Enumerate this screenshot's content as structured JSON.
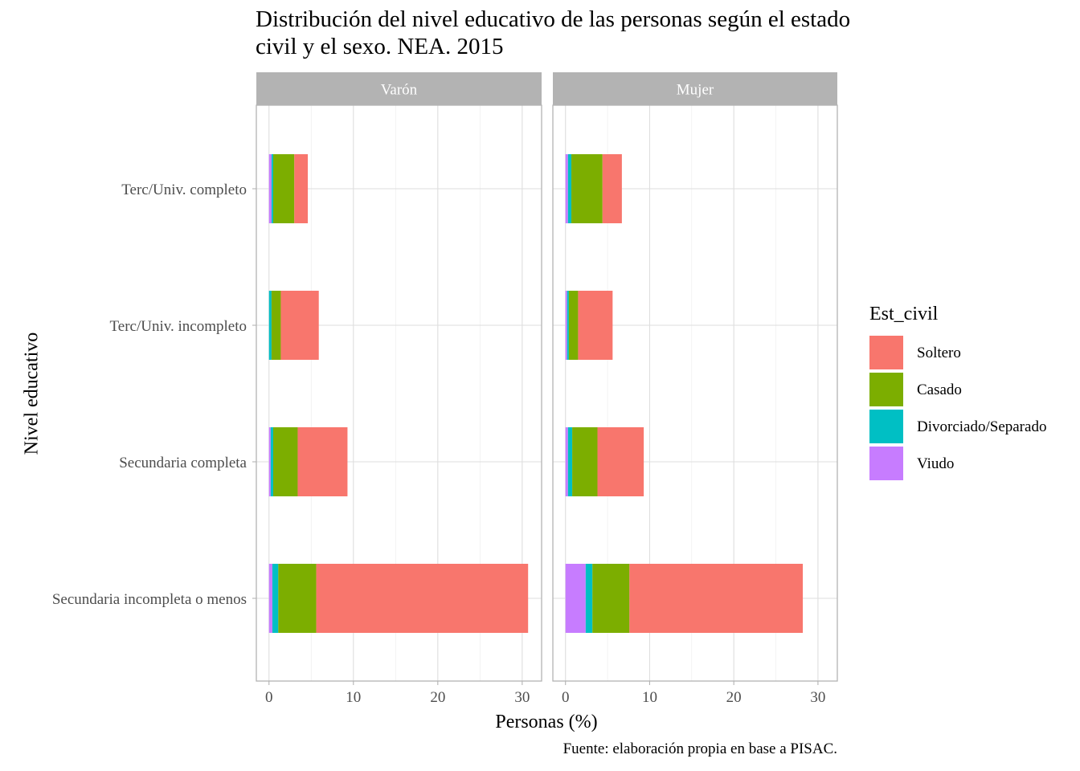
{
  "chart_data": {
    "type": "bar",
    "orientation": "horizontal",
    "stacked": true,
    "title": "Distribución del nivel educativo de las personas según el estado civil y el sexo. NEA. 2015",
    "title_lines": [
      "Distribución del nivel educativo de las personas según el estado",
      "civil y el sexo. NEA. 2015"
    ],
    "xlabel": "Personas (%)",
    "ylabel": "Nivel educativo",
    "caption": "Fuente: elaboración propia en base a PISAC.",
    "xlim": [
      -1.5,
      32.3
    ],
    "x_ticks": [
      "0",
      "10",
      "20",
      "30"
    ],
    "grid": true,
    "legend": {
      "title": "Est_civil",
      "position": "right",
      "items": [
        {
          "label": "Soltero",
          "color": "#F8766D"
        },
        {
          "label": "Casado",
          "color": "#7CAE00"
        },
        {
          "label": "Divorciado/Separado",
          "color": "#00BFC4"
        },
        {
          "label": "Viudo",
          "color": "#C77CFF"
        }
      ]
    },
    "categories": [
      "Terc/Univ. completo",
      "Terc/Univ. incompleto",
      "Secundaria completa",
      "Secundaria incompleta o menos"
    ],
    "stack_order": [
      "Viudo",
      "Divorciado/Separado",
      "Casado",
      "Soltero"
    ],
    "facets": [
      {
        "label": "Varón",
        "series": [
          {
            "name": "Viudo",
            "values": [
              0.3,
              0.0,
              0.2,
              0.4
            ]
          },
          {
            "name": "Divorciado/Separado",
            "values": [
              0.2,
              0.3,
              0.3,
              0.7
            ]
          },
          {
            "name": "Casado",
            "values": [
              2.5,
              1.1,
              2.9,
              4.5
            ]
          },
          {
            "name": "Soltero",
            "values": [
              1.6,
              4.5,
              5.9,
              25.1
            ]
          }
        ]
      },
      {
        "label": "Mujer",
        "series": [
          {
            "name": "Viudo",
            "values": [
              0.3,
              0.2,
              0.3,
              2.4
            ]
          },
          {
            "name": "Divorciado/Separado",
            "values": [
              0.4,
              0.2,
              0.5,
              0.8
            ]
          },
          {
            "name": "Casado",
            "values": [
              3.7,
              1.1,
              3.0,
              4.4
            ]
          },
          {
            "name": "Soltero",
            "values": [
              2.3,
              4.1,
              5.5,
              20.6
            ]
          }
        ]
      }
    ]
  }
}
